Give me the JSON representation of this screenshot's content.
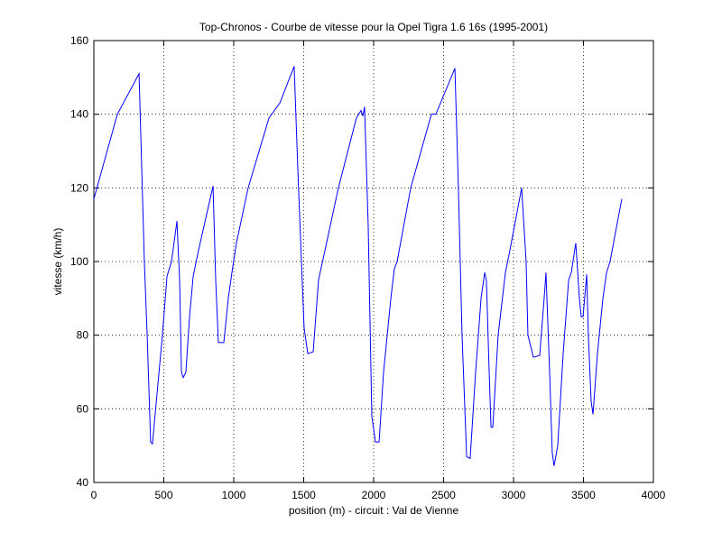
{
  "chart_data": {
    "type": "line",
    "title": "Top-Chronos - Courbe de vitesse pour la Opel Tigra 1.6 16s (1995-2001)",
    "x_label": "position (m) - circuit : Val de Vienne",
    "y_label": "vitesse (km/h)",
    "color": "#0000ff",
    "grid": true,
    "xlim": [
      0,
      4000
    ],
    "ylim": [
      40,
      160
    ],
    "xticks": [
      0,
      500,
      1000,
      1500,
      2000,
      2500,
      3000,
      3500,
      4000
    ],
    "yticks": [
      40,
      60,
      80,
      100,
      120,
      140,
      160
    ],
    "x": [
      0,
      168,
      323,
      361,
      381,
      406,
      419,
      490,
      523,
      555,
      594,
      613,
      626,
      639,
      658,
      684,
      710,
      748,
      852,
      871,
      890,
      929,
      961,
      987,
      1019,
      1103,
      1252,
      1329,
      1432,
      1458,
      1484,
      1503,
      1529,
      1568,
      1606,
      1652,
      1748,
      1877,
      1910,
      1923,
      1935,
      1961,
      1987,
      2013,
      2039,
      2071,
      2123,
      2148,
      2168,
      2265,
      2413,
      2445,
      2581,
      2606,
      2632,
      2665,
      2690,
      2729,
      2768,
      2794,
      2806,
      2826,
      2839,
      2852,
      2890,
      2942,
      2974,
      3058,
      3090,
      3103,
      3142,
      3187,
      3219,
      3232,
      3258,
      3277,
      3290,
      3316,
      3355,
      3394,
      3413,
      3445,
      3471,
      3484,
      3497,
      3523,
      3535,
      3555,
      3568,
      3600,
      3639,
      3665,
      3690,
      3774
    ],
    "values": [
      117,
      140,
      151,
      100,
      80,
      51,
      50.5,
      80,
      96,
      100,
      111,
      95,
      70,
      68.5,
      70,
      85,
      96,
      103,
      120.5,
      95,
      78,
      78,
      90,
      97,
      105,
      120,
      139,
      143,
      153,
      125,
      100,
      82,
      75,
      75.5,
      95,
      103,
      120,
      139,
      141,
      139.5,
      142,
      110,
      58,
      51,
      51,
      70,
      90,
      98,
      100,
      120,
      140,
      140,
      152.5,
      120,
      80,
      47,
      46.5,
      70,
      90,
      97,
      95,
      70,
      55,
      55,
      80,
      97,
      103,
      120,
      100,
      80,
      74,
      74.5,
      90,
      97,
      70,
      48,
      44.5,
      50,
      75,
      95,
      97,
      105,
      90,
      85,
      85,
      96.5,
      80,
      62,
      58.5,
      75,
      90,
      97,
      100,
      117
    ]
  }
}
